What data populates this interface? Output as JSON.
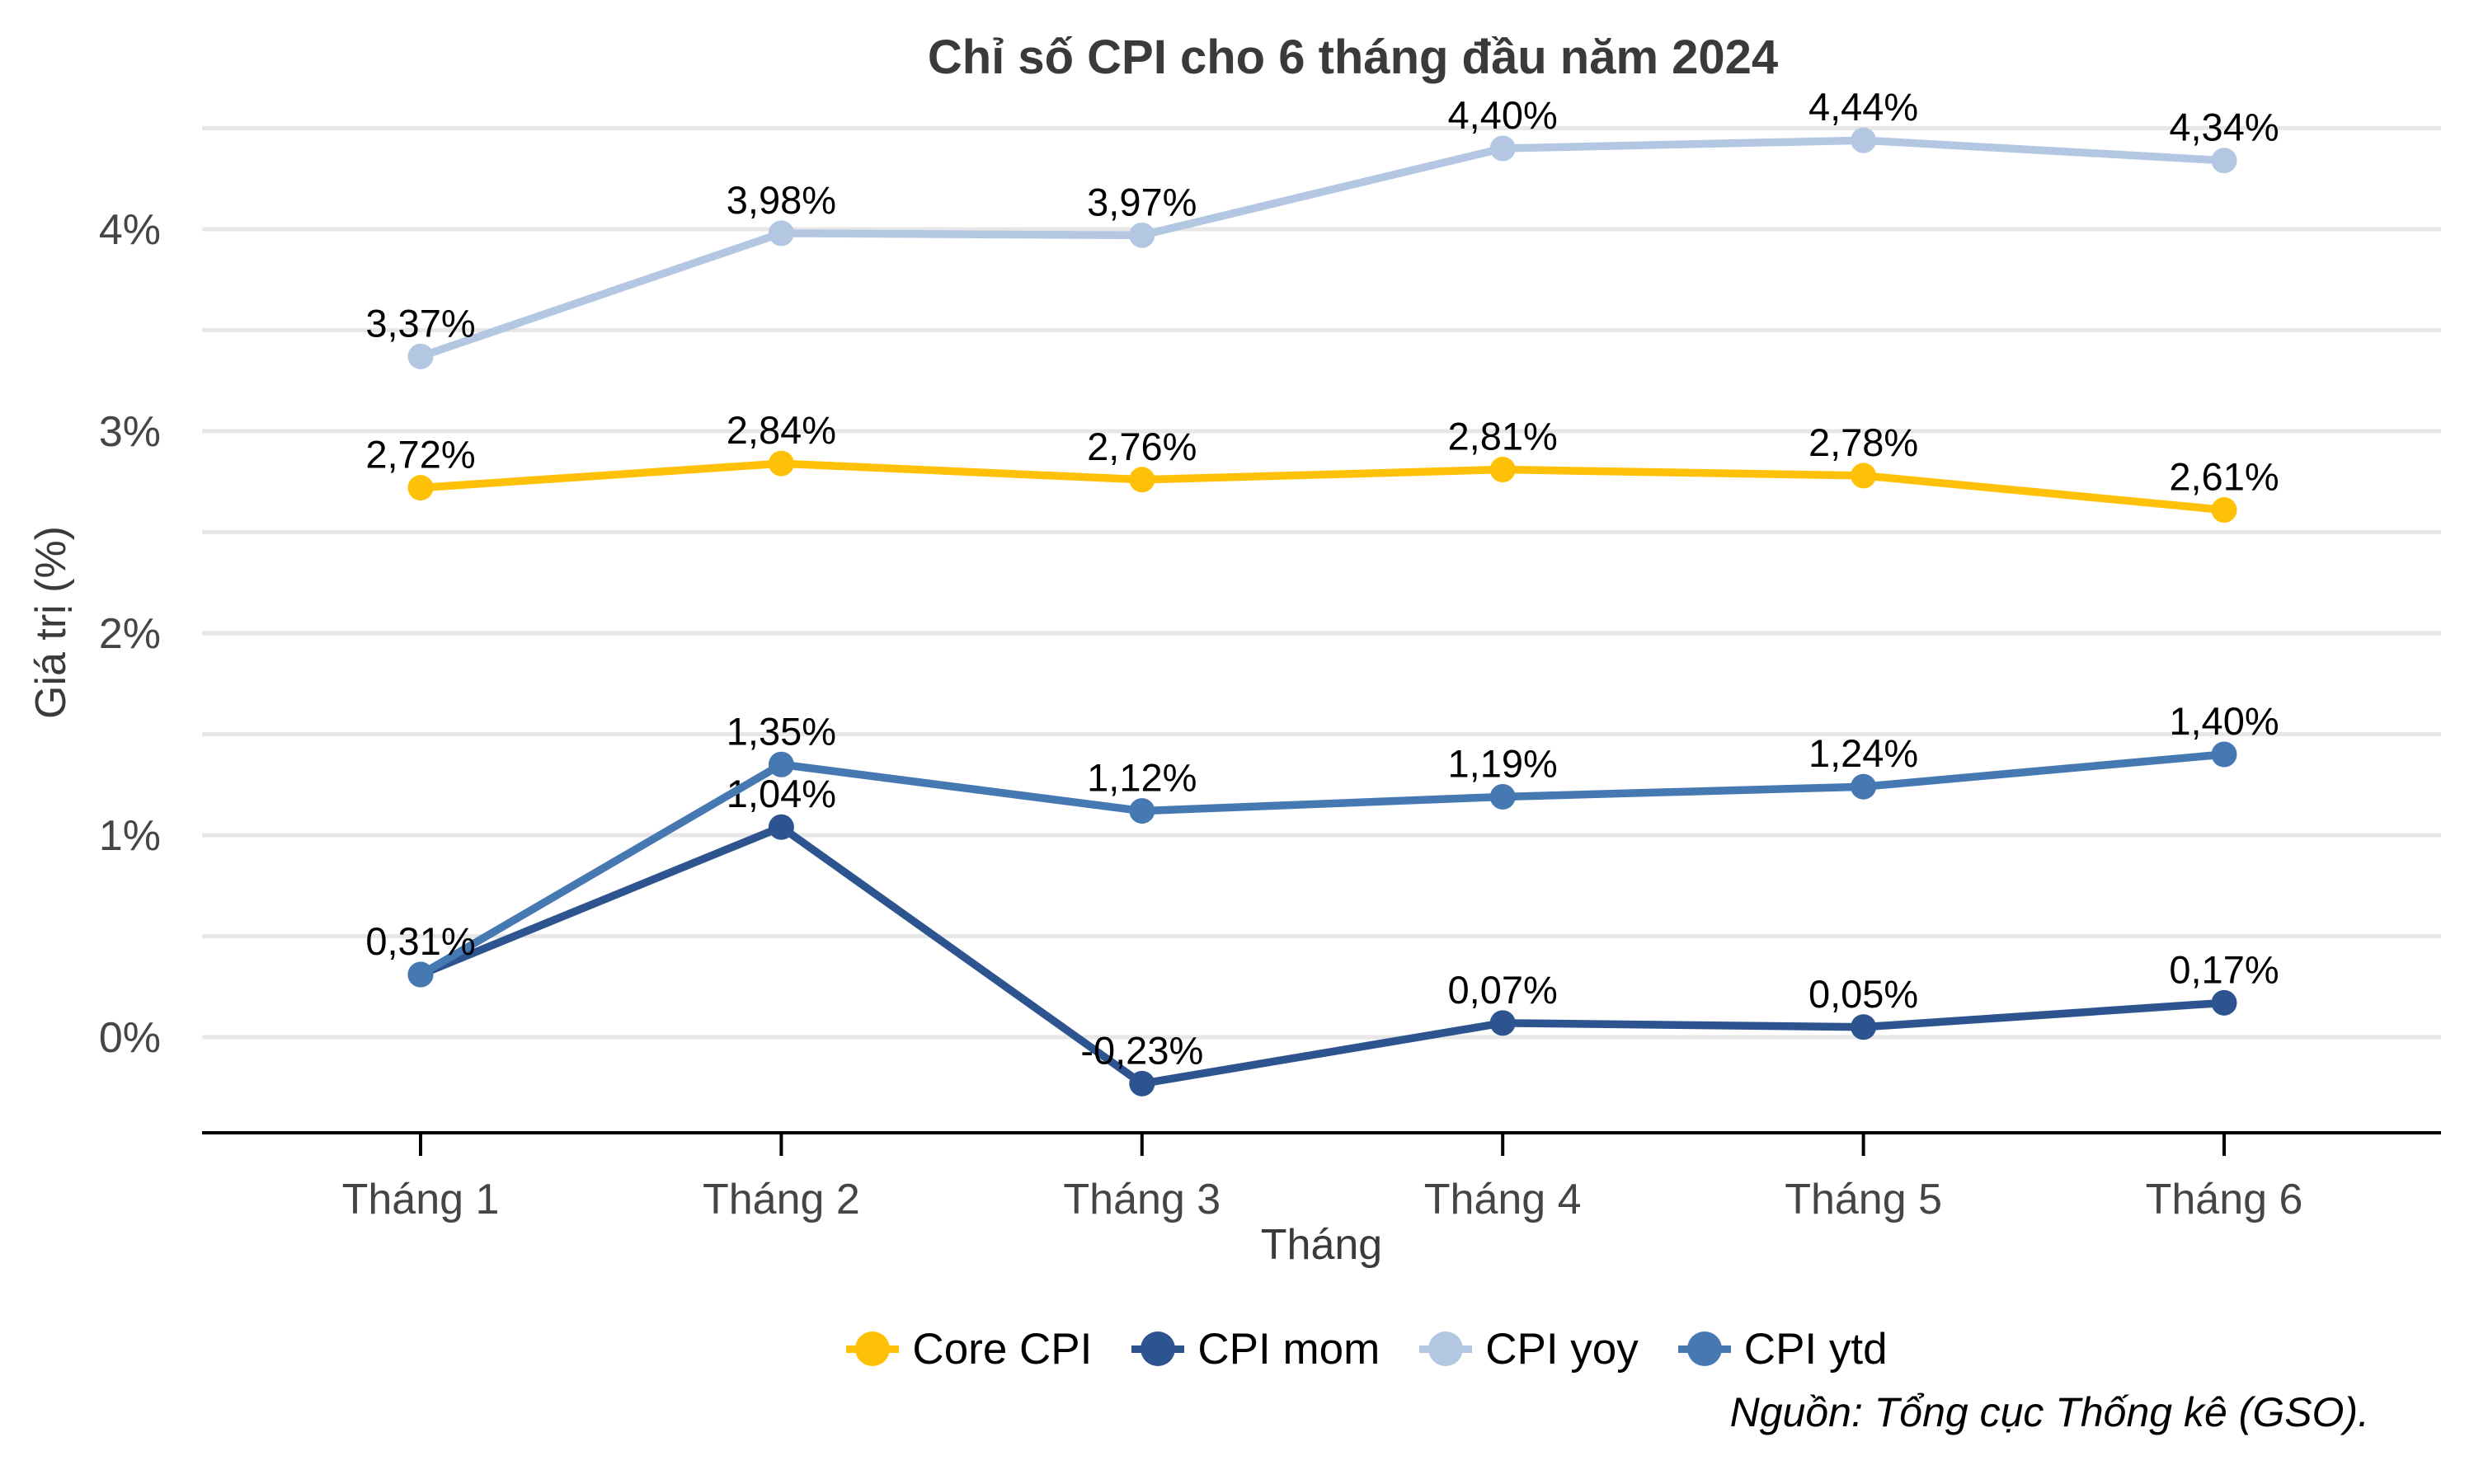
{
  "title": "Chỉ số CPI cho 6 tháng đầu năm 2024",
  "source_note": "Nguồn: Tổng cục Thống kê (GSO).",
  "chart_data": {
    "type": "line",
    "title": "Chỉ số CPI cho 6 tháng đầu năm 2024",
    "xlabel": "Tháng",
    "ylabel": "Giá trị (%)",
    "categories": [
      "Tháng 1",
      "Tháng 2",
      "Tháng 3",
      "Tháng 4",
      "Tháng 5",
      "Tháng 6"
    ],
    "ylim": [
      -0.5,
      4.6
    ],
    "grid": "horizontal gridlines every 0.5%",
    "grid_color": "#E7E7E7",
    "axis_color": "#000000",
    "legend_position": "bottom-center",
    "y_ticks": [
      {
        "value": 0,
        "label": "0%"
      },
      {
        "value": 1,
        "label": "1%"
      },
      {
        "value": 2,
        "label": "2%"
      },
      {
        "value": 3,
        "label": "3%"
      },
      {
        "value": 4,
        "label": "4%"
      }
    ],
    "series": [
      {
        "name": "Core CPI",
        "color": "#FFC107",
        "values": [
          2.72,
          2.84,
          2.76,
          2.81,
          2.78,
          2.61
        ],
        "labels": [
          "2,72%",
          "2,84%",
          "2,76%",
          "2,81%",
          "2,78%",
          "2,61%"
        ]
      },
      {
        "name": "CPI mom",
        "color": "#2E5490",
        "values": [
          0.31,
          1.04,
          -0.23,
          0.07,
          0.05,
          0.17
        ],
        "labels": [
          null,
          "1,04%",
          "-0,23%",
          "0,07%",
          "0,05%",
          "0,17%"
        ]
      },
      {
        "name": "CPI yoy",
        "color": "#B3C7E2",
        "values": [
          3.37,
          3.98,
          3.97,
          4.4,
          4.44,
          4.34
        ],
        "labels": [
          "3,37%",
          "3,98%",
          "3,97%",
          "4,40%",
          "4,44%",
          "4,34%"
        ]
      },
      {
        "name": "CPI ytd",
        "color": "#4679B2",
        "values": [
          0.31,
          1.35,
          1.12,
          1.19,
          1.24,
          1.4
        ],
        "labels": [
          "0,31%",
          "1,35%",
          "1,12%",
          "1,19%",
          "1,24%",
          "1,40%"
        ]
      }
    ]
  }
}
